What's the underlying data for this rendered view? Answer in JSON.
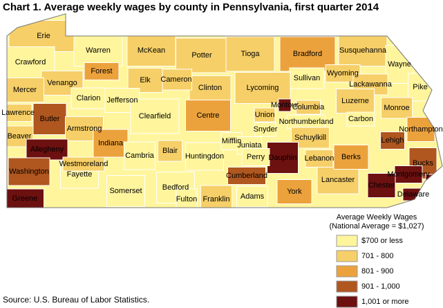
{
  "title": "Chart 1. Average weekly wages by county in Pennsylvania, first quarter 2014",
  "legend": {
    "title": "Average Weekly Wages",
    "subtitle": "(National Average = $1,027)",
    "items": [
      {
        "label": "$700 or less",
        "color": "#fff59d"
      },
      {
        "label": "701 - 800",
        "color": "#f6cf68"
      },
      {
        "label": "801 - 900",
        "color": "#eca23c"
      },
      {
        "label": "901 - 1,000",
        "color": "#b0561f"
      },
      {
        "label": "1,001 or more",
        "color": "#6d1010"
      }
    ]
  },
  "counties": [
    {
      "name": "Erie",
      "class": 1
    },
    {
      "name": "Crawford",
      "class": 0
    },
    {
      "name": "Warren",
      "class": 0
    },
    {
      "name": "McKean",
      "class": 1
    },
    {
      "name": "Potter",
      "class": 1
    },
    {
      "name": "Tioga",
      "class": 1
    },
    {
      "name": "Bradford",
      "class": 2
    },
    {
      "name": "Susquehanna",
      "class": 1
    },
    {
      "name": "Wayne",
      "class": 0
    },
    {
      "name": "Pike",
      "class": 0
    },
    {
      "name": "Wyoming",
      "class": 1
    },
    {
      "name": "Lackawanna",
      "class": 1
    },
    {
      "name": "Sullivan",
      "class": 0
    },
    {
      "name": "Lycoming",
      "class": 1
    },
    {
      "name": "Clinton",
      "class": 1
    },
    {
      "name": "Cameron",
      "class": 1
    },
    {
      "name": "Elk",
      "class": 1
    },
    {
      "name": "Forest",
      "class": 2
    },
    {
      "name": "Venango",
      "class": 1
    },
    {
      "name": "Mercer",
      "class": 1
    },
    {
      "name": "Clarion",
      "class": 0
    },
    {
      "name": "Jefferson",
      "class": 0
    },
    {
      "name": "Lawrence",
      "class": 1
    },
    {
      "name": "Butler",
      "class": 3
    },
    {
      "name": "Armstrong",
      "class": 1
    },
    {
      "name": "Beaver",
      "class": 1
    },
    {
      "name": "Allegheny",
      "class": 4
    },
    {
      "name": "Washington",
      "class": 3
    },
    {
      "name": "Greene",
      "class": 4
    },
    {
      "name": "Fayette",
      "class": 0
    },
    {
      "name": "Westmoreland",
      "class": 1
    },
    {
      "name": "Indiana",
      "class": 2
    },
    {
      "name": "Cambria",
      "class": 0
    },
    {
      "name": "Somerset",
      "class": 0
    },
    {
      "name": "Bedford",
      "class": 0
    },
    {
      "name": "Blair",
      "class": 1
    },
    {
      "name": "Huntingdon",
      "class": 0
    },
    {
      "name": "Clearfield",
      "class": 0
    },
    {
      "name": "Centre",
      "class": 2
    },
    {
      "name": "Mifflin",
      "class": 0
    },
    {
      "name": "Juniata",
      "class": 0
    },
    {
      "name": "Union",
      "class": 1
    },
    {
      "name": "Snyder",
      "class": 0
    },
    {
      "name": "Montour",
      "class": 4
    },
    {
      "name": "Columbia",
      "class": 1
    },
    {
      "name": "Northumberland",
      "class": 0
    },
    {
      "name": "Luzerne",
      "class": 1
    },
    {
      "name": "Monroe",
      "class": 1
    },
    {
      "name": "Carbon",
      "class": 0
    },
    {
      "name": "Schuylkill",
      "class": 1
    },
    {
      "name": "Northampton",
      "class": 2
    },
    {
      "name": "Lehigh",
      "class": 3
    },
    {
      "name": "Bucks",
      "class": 3
    },
    {
      "name": "Montgomery",
      "class": 4
    },
    {
      "name": "Chester",
      "class": 4
    },
    {
      "name": "Delaware",
      "class": 4
    },
    {
      "name": null,
      "class": 4
    },
    {
      "name": "Lancaster",
      "class": 1
    },
    {
      "name": "Berks",
      "class": 2
    },
    {
      "name": "Lebanon",
      "class": 1
    },
    {
      "name": "Dauphin",
      "class": 4
    },
    {
      "name": "Perry",
      "class": 0
    },
    {
      "name": "Cumberland",
      "class": 3
    },
    {
      "name": "York",
      "class": 2
    },
    {
      "name": "Adams",
      "class": 0
    },
    {
      "name": "Franklin",
      "class": 1
    },
    {
      "name": "Fulton",
      "class": 0
    }
  ],
  "source": "Source: U.S. Bureau of Labor Statistics."
}
